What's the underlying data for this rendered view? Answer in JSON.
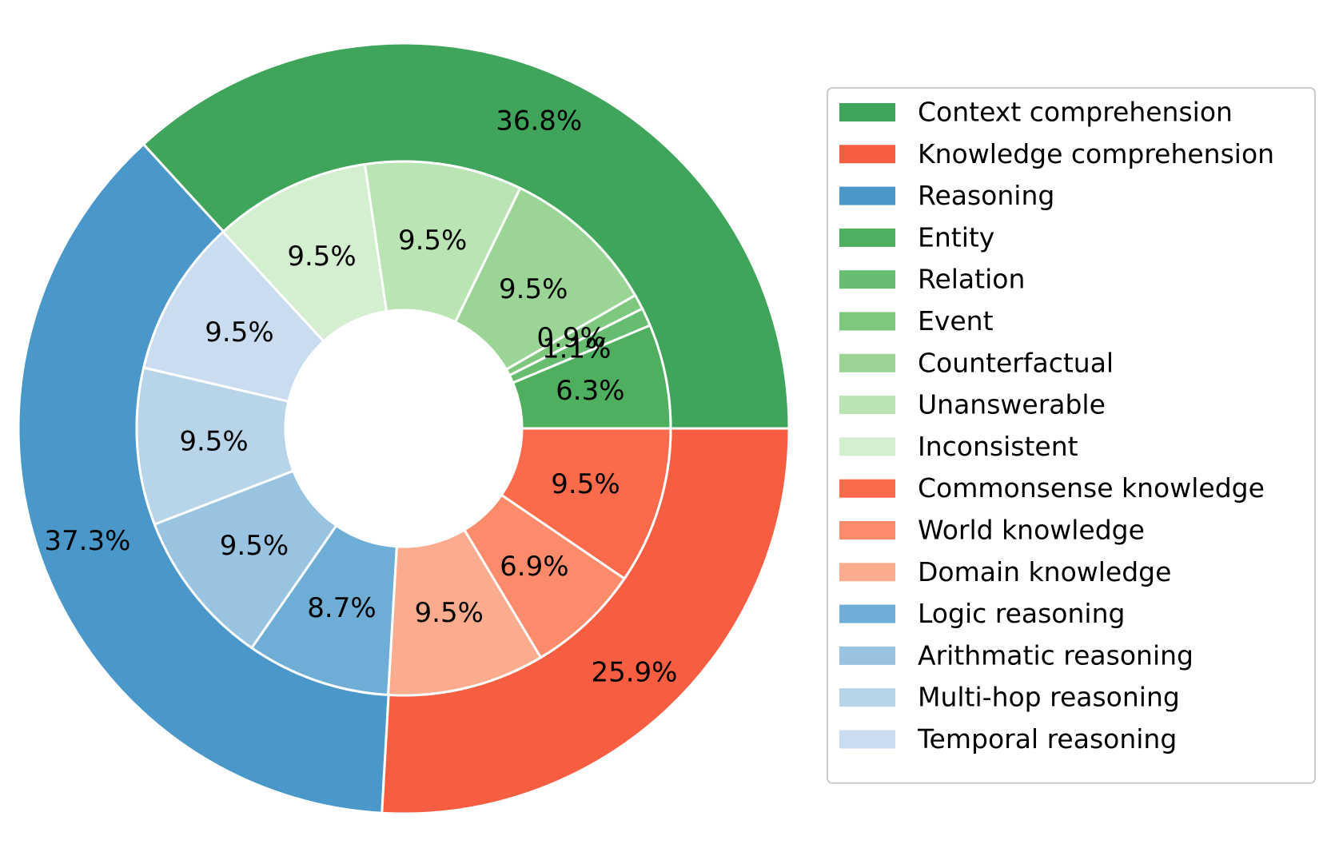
{
  "chart_data": {
    "type": "pie",
    "style": "nested-donut",
    "outer": [
      {
        "name": "Context comprehension",
        "value": 36.8,
        "label": "36.8%",
        "color": "#3fa55a"
      },
      {
        "name": "Reasoning",
        "value": 37.3,
        "label": "37.3%",
        "color": "#4a98ca"
      },
      {
        "name": "Knowledge comprehension",
        "value": 25.9,
        "label": "25.9%",
        "color": "#f65d41"
      }
    ],
    "inner": [
      {
        "name": "Entity",
        "value": 6.3,
        "label": "6.3%",
        "color": "#4eaf5e"
      },
      {
        "name": "Relation",
        "value": 1.1,
        "label": "1.1%",
        "color": "#66bd6f"
      },
      {
        "name": "Event",
        "value": 0.9,
        "label": "0.9%",
        "color": "#7ec87d"
      },
      {
        "name": "Counterfactual",
        "value": 9.5,
        "label": "9.5%",
        "color": "#9bd596"
      },
      {
        "name": "Unanswerable",
        "value": 9.5,
        "label": "9.5%",
        "color": "#bbe4b4"
      },
      {
        "name": "Inconsistent",
        "value": 9.5,
        "label": "9.5%",
        "color": "#d4eed0"
      },
      {
        "name": "Temporal reasoning",
        "value": 9.5,
        "label": "9.5%",
        "color": "#c9dcf0"
      },
      {
        "name": "Multi-hop reasoning",
        "value": 9.5,
        "label": "9.5%",
        "color": "#b8d4e9"
      },
      {
        "name": "Arithmatic reasoning",
        "value": 9.5,
        "label": "9.5%",
        "color": "#98c4e1"
      },
      {
        "name": "Logic reasoning",
        "value": 8.7,
        "label": "8.7%",
        "color": "#6eaed6"
      },
      {
        "name": "Domain knowledge",
        "value": 9.5,
        "label": "9.5%",
        "color": "#fcac8e"
      },
      {
        "name": "World knowledge",
        "value": 6.9,
        "label": "6.9%",
        "color": "#fc8b6b"
      },
      {
        "name": "Commonsense knowledge",
        "value": 9.5,
        "label": "9.5%",
        "color": "#fb6a4b"
      }
    ],
    "legend_placement": "right",
    "legend": [
      {
        "label": "Context comprehension",
        "color": "#3fa55a"
      },
      {
        "label": "Knowledge comprehension",
        "color": "#f65d41"
      },
      {
        "label": "Reasoning",
        "color": "#4a98ca"
      },
      {
        "label": "Entity",
        "color": "#4eaf5e"
      },
      {
        "label": "Relation",
        "color": "#66bd6f"
      },
      {
        "label": "Event",
        "color": "#7ec87d"
      },
      {
        "label": "Counterfactual",
        "color": "#9bd596"
      },
      {
        "label": "Unanswerable",
        "color": "#bbe4b4"
      },
      {
        "label": "Inconsistent",
        "color": "#d4eed0"
      },
      {
        "label": "Commonsense knowledge",
        "color": "#fb6a4b"
      },
      {
        "label": "World knowledge",
        "color": "#fc8b6b"
      },
      {
        "label": "Domain knowledge",
        "color": "#fcac8e"
      },
      {
        "label": "Logic reasoning",
        "color": "#6eaed6"
      },
      {
        "label": "Arithmatic reasoning",
        "color": "#98c4e1"
      },
      {
        "label": "Multi-hop reasoning",
        "color": "#b8d4e9"
      },
      {
        "label": "Temporal reasoning",
        "color": "#c9dcf0"
      }
    ]
  }
}
